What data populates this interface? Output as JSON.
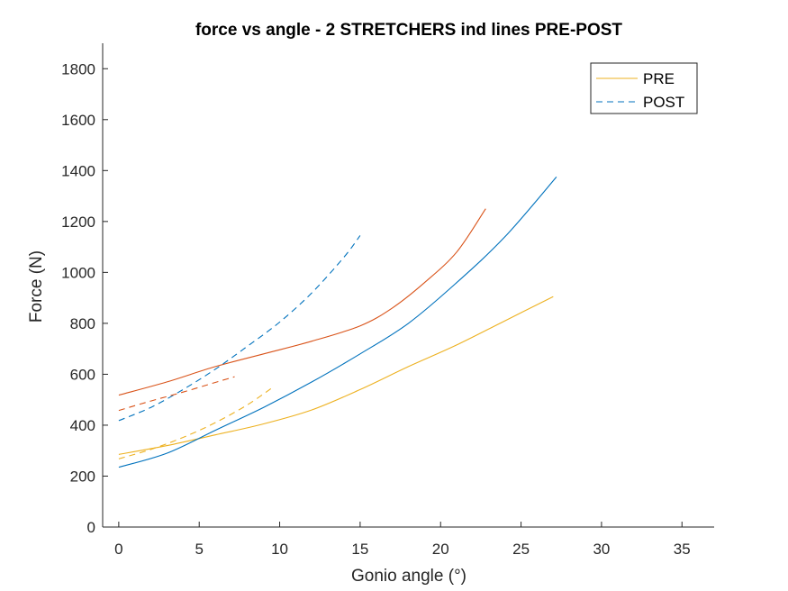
{
  "chart_data": {
    "type": "line",
    "title": "force vs angle - 2 STRETCHERS ind lines PRE-POST",
    "xlabel": "Gonio angle (°)",
    "ylabel": "Force (N)",
    "xlim": [
      -1,
      37
    ],
    "ylim": [
      0,
      1900
    ],
    "xticks": [
      0,
      5,
      10,
      15,
      20,
      25,
      30,
      35
    ],
    "yticks": [
      0,
      200,
      400,
      600,
      800,
      1000,
      1200,
      1400,
      1600,
      1800
    ],
    "grid": false,
    "legend": {
      "placement": "top-right",
      "entries": [
        {
          "label": "PRE",
          "style": "solid",
          "color": "#EDB120"
        },
        {
          "label": "POST",
          "style": "dashed",
          "color": "#0072BD"
        }
      ]
    },
    "series": [
      {
        "color": "#EDB120",
        "style": "solid",
        "points": [
          [
            0,
            285
          ],
          [
            3,
            320
          ],
          [
            6,
            362
          ],
          [
            9,
            405
          ],
          [
            12,
            460
          ],
          [
            15,
            540
          ],
          [
            18,
            630
          ],
          [
            21,
            715
          ],
          [
            24,
            810
          ],
          [
            27,
            905
          ]
        ]
      },
      {
        "color": "#0072BD",
        "style": "solid",
        "points": [
          [
            0,
            235
          ],
          [
            3,
            290
          ],
          [
            6,
            380
          ],
          [
            9,
            470
          ],
          [
            12,
            570
          ],
          [
            15,
            680
          ],
          [
            18,
            800
          ],
          [
            21,
            960
          ],
          [
            24,
            1140
          ],
          [
            27.2,
            1375
          ]
        ]
      },
      {
        "color": "#D95319",
        "style": "solid",
        "points": [
          [
            0,
            518
          ],
          [
            3,
            570
          ],
          [
            6,
            630
          ],
          [
            9,
            680
          ],
          [
            12,
            730
          ],
          [
            15,
            790
          ],
          [
            17,
            860
          ],
          [
            19,
            960
          ],
          [
            21,
            1080
          ],
          [
            22.8,
            1250
          ]
        ]
      },
      {
        "color": "#0072BD",
        "style": "dashed",
        "points": [
          [
            0,
            418
          ],
          [
            2,
            470
          ],
          [
            4,
            540
          ],
          [
            6,
            620
          ],
          [
            8,
            710
          ],
          [
            10,
            805
          ],
          [
            12,
            920
          ],
          [
            14,
            1060
          ],
          [
            15,
            1145
          ]
        ]
      },
      {
        "color": "#D95319",
        "style": "dashed",
        "points": [
          [
            0,
            458
          ],
          [
            2,
            495
          ],
          [
            4,
            530
          ],
          [
            6,
            568
          ],
          [
            7.2,
            590
          ]
        ]
      },
      {
        "color": "#EDB120",
        "style": "dashed",
        "points": [
          [
            0,
            268
          ],
          [
            2,
            305
          ],
          [
            4,
            352
          ],
          [
            6,
            410
          ],
          [
            8,
            480
          ],
          [
            9.6,
            550
          ]
        ]
      }
    ]
  }
}
